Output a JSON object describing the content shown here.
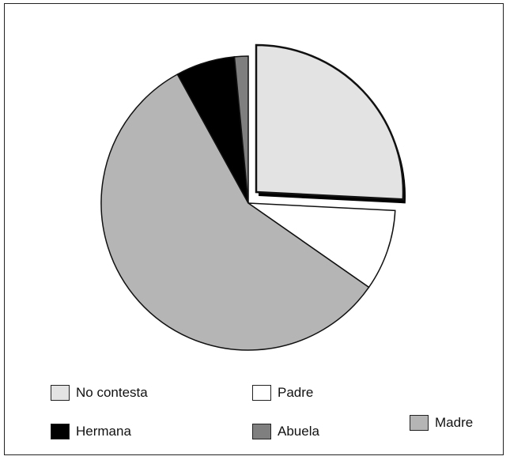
{
  "chart_data": {
    "type": "pie",
    "slices": [
      {
        "label": "No contesta",
        "value": 25.8,
        "color": "#e3e3e3",
        "exploded": true
      },
      {
        "label": "Padre",
        "value": 8.9,
        "color": "#ffffff",
        "exploded": false
      },
      {
        "label": "Madre",
        "value": 57.3,
        "color": "#b5b5b5",
        "exploded": false
      },
      {
        "label": "Hermana",
        "value": 6.5,
        "color": "#000000",
        "exploded": false
      },
      {
        "label": "Abuela",
        "value": 1.5,
        "color": "#7f7f7f",
        "exploded": false
      }
    ],
    "legend_position": "bottom"
  },
  "legend": [
    {
      "label": "No contesta",
      "color": "#e3e3e3"
    },
    {
      "label": "Padre",
      "color": "#ffffff"
    },
    {
      "label": "Madre",
      "color": "#b5b5b5"
    },
    {
      "label": "Hermana",
      "color": "#000000"
    },
    {
      "label": "Abuela",
      "color": "#7f7f7f"
    }
  ]
}
